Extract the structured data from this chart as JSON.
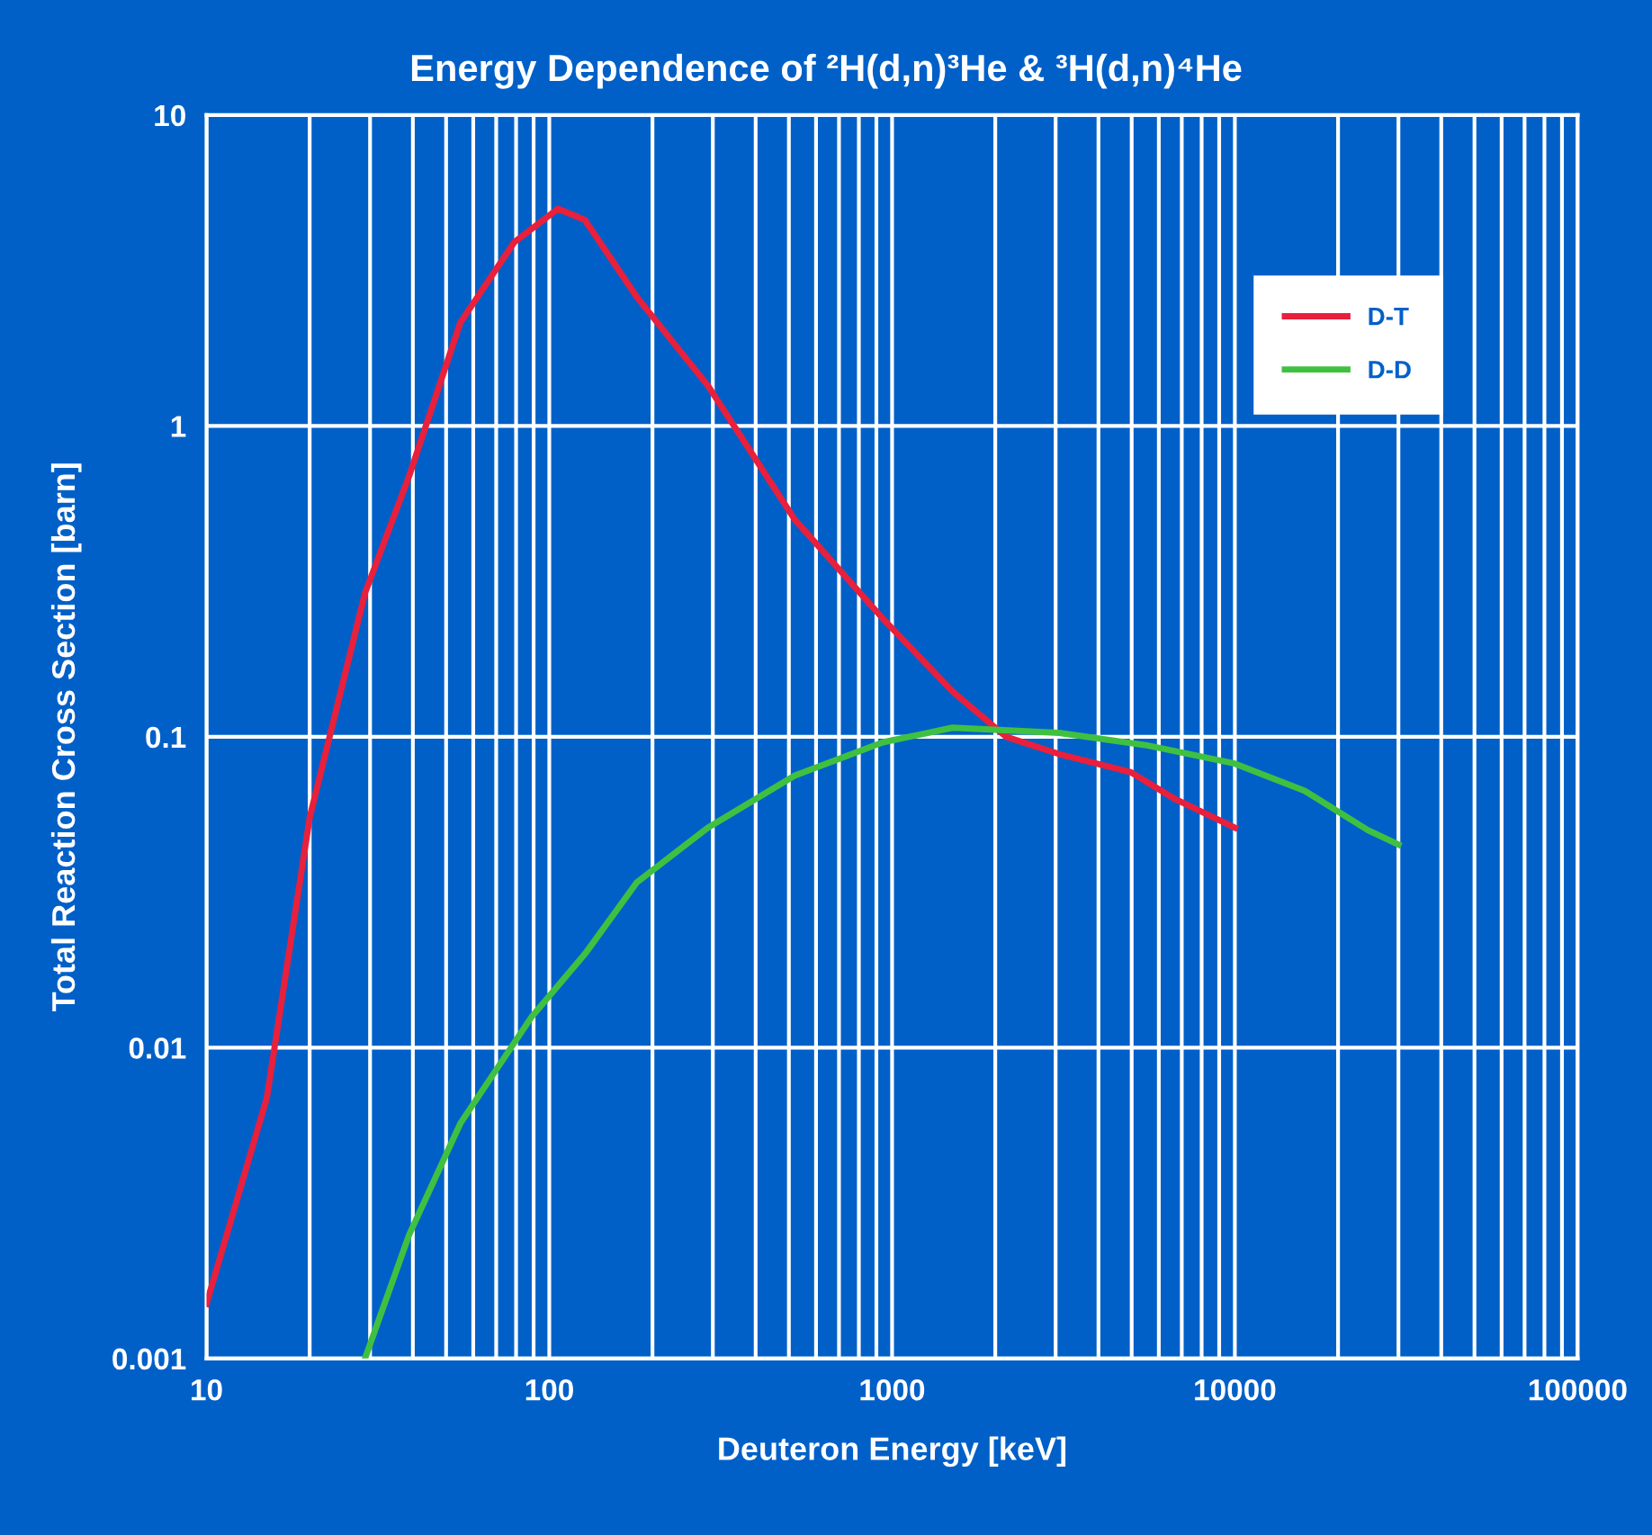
{
  "chart_data": {
    "type": "line",
    "title": "Energy Dependence of ²H(d,n)³He & ³H(d,n)⁴He",
    "xlabel": "Deuteron Energy [keV]",
    "ylabel": "Total Reaction Cross Section [barn]",
    "log": "xy",
    "grid": true,
    "legend": "top right",
    "marker": "none",
    "line_style": "solid",
    "xlim": [
      10,
      100000
    ],
    "ylim": [
      0.001,
      10
    ],
    "xticks": [
      10,
      {
        "value": 20,
        "label": null
      },
      {
        "value": 30,
        "label": null
      },
      {
        "value": 40,
        "label": null
      },
      {
        "value": 50,
        "label": null
      },
      {
        "value": 60,
        "label": null
      },
      {
        "value": 70,
        "label": null
      },
      {
        "value": 80,
        "label": null
      },
      {
        "value": 90,
        "label": null
      },
      100,
      {
        "value": 200,
        "label": null
      },
      {
        "value": 300,
        "label": null
      },
      {
        "value": 400,
        "label": null
      },
      {
        "value": 500,
        "label": null
      },
      {
        "value": 600,
        "label": null
      },
      {
        "value": 700,
        "label": null
      },
      {
        "value": 800,
        "label": null
      },
      {
        "value": 900,
        "label": null
      },
      1000,
      {
        "value": 2000,
        "label": null
      },
      {
        "value": 3000,
        "label": null
      },
      {
        "value": 4000,
        "label": null
      },
      {
        "value": 5000,
        "label": null
      },
      {
        "value": 6000,
        "label": null
      },
      {
        "value": 7000,
        "label": null
      },
      {
        "value": 8000,
        "label": null
      },
      {
        "value": 9000,
        "label": null
      },
      10000,
      {
        "value": 20000,
        "label": null
      },
      {
        "value": 30000,
        "label": null
      },
      {
        "value": 40000,
        "label": null
      },
      {
        "value": 50000,
        "label": null
      },
      {
        "value": 60000,
        "label": null
      },
      {
        "value": 70000,
        "label": null
      },
      {
        "value": 80000,
        "label": null
      },
      {
        "value": 90000,
        "label": null
      },
      100000
    ],
    "yticks": [
      0.001,
      0.01,
      0.1,
      1,
      10
    ],
    "series": [
      {
        "name": "D-T",
        "color": "#e8203c",
        "x": [
          10,
          15,
          20,
          29,
          39,
          55,
          79,
          106,
          127,
          180,
          290,
          520,
          940,
          1500,
          2150,
          3070,
          4960,
          6700,
          10000
        ],
        "values": [
          0.0015,
          0.0069,
          0.055,
          0.29,
          0.69,
          2.15,
          3.9,
          5.0,
          4.6,
          2.6,
          1.35,
          0.5,
          0.24,
          0.14,
          0.1,
          0.088,
          0.077,
          0.063,
          0.051
        ]
      },
      {
        "name": "D-D",
        "color": "#40c040",
        "x": [
          29,
          39,
          55,
          89,
          127,
          180,
          290,
          520,
          940,
          1500,
          3070,
          5500,
          10000,
          16000,
          24500,
          30000
        ],
        "values": [
          0.001,
          0.0025,
          0.0057,
          0.0126,
          0.02,
          0.034,
          0.051,
          0.075,
          0.096,
          0.107,
          0.103,
          0.094,
          0.082,
          0.067,
          0.05,
          0.045
        ]
      }
    ]
  }
}
